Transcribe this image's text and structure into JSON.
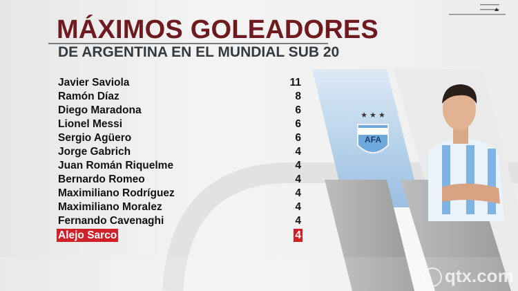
{
  "header": {
    "title": "MÁXIMOS GOLEADORES",
    "subtitle": "DE ARGENTINA EN EL MUNDIAL SUB 20"
  },
  "scorers": [
    {
      "name": "Javier Saviola",
      "goals": "11"
    },
    {
      "name": "Ramón Díaz",
      "goals": "8"
    },
    {
      "name": "Diego Maradona",
      "goals": "6"
    },
    {
      "name": "Lionel Messi",
      "goals": "6"
    },
    {
      "name": "Sergio Agüero",
      "goals": "6"
    },
    {
      "name": "Jorge Gabrich",
      "goals": "4"
    },
    {
      "name": "Juan Román Riquelme",
      "goals": "4"
    },
    {
      "name": "Bernardo Romeo",
      "goals": "4"
    },
    {
      "name": "Maximiliano Rodríguez",
      "goals": "4"
    },
    {
      "name": "Maximiliano Moralez",
      "goals": "4"
    },
    {
      "name": "Fernando Cavenaghi",
      "goals": "4"
    },
    {
      "name": "Alejo Sarco",
      "goals": "4",
      "highlighted": true
    }
  ],
  "crest": {
    "text": "AFA"
  },
  "watermark": {
    "text": "qtx.com"
  },
  "colors": {
    "title": "#6e1a1f",
    "highlight": "#d0202a",
    "panel_blue": "#a9cbe8"
  }
}
